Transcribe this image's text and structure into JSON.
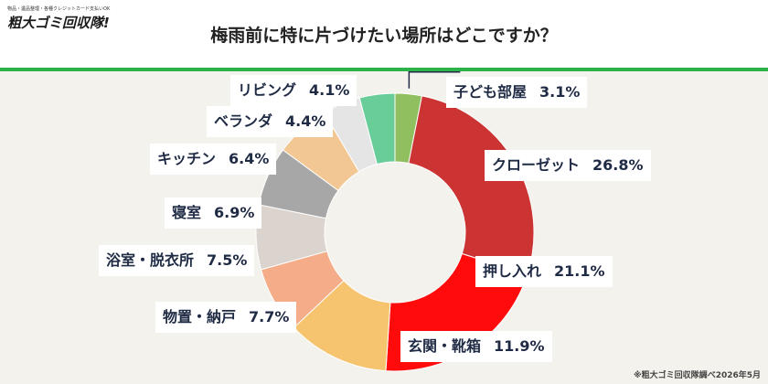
{
  "logo": {
    "tagline": "物品・遺品整理・各種クレジットカード支払いOK",
    "name": "粗大ゴミ回収隊!"
  },
  "source_note": "※粗大ゴミ回収隊調べ2026年5月",
  "colors": {
    "accent_rule": "#2bb34a",
    "background": "#f4f2ec"
  },
  "chart_data": {
    "type": "pie",
    "donut": true,
    "title": "梅雨前に特に片づけたい場所はどこですか？",
    "unit": "%",
    "slices": [
      {
        "label": "子ども部屋",
        "value": 3.1,
        "value_text": "3.1%",
        "color": "#8fbf5e"
      },
      {
        "label": "クローゼット",
        "value": 26.8,
        "value_text": "26.8%",
        "color": "#cc3434"
      },
      {
        "label": "押し入れ",
        "value": 21.1,
        "value_text": "21.1%",
        "color": "#ff0b0b"
      },
      {
        "label": "玄関・靴箱",
        "value": 11.9,
        "value_text": "11.9%",
        "color": "#f6c46e"
      },
      {
        "label": "物置・納戸",
        "value": 7.7,
        "value_text": "7.7%",
        "color": "#f4ad88"
      },
      {
        "label": "浴室・脱衣所",
        "value": 7.5,
        "value_text": "7.5%",
        "color": "#dbd3cd"
      },
      {
        "label": "寝室",
        "value": 6.9,
        "value_text": "6.9%",
        "color": "#a7a7a7"
      },
      {
        "label": "キッチン",
        "value": 6.4,
        "value_text": "6.4%",
        "color": "#f2c793"
      },
      {
        "label": "ベランダ",
        "value": 4.4,
        "value_text": "4.4%",
        "color": "#e5e5e5"
      },
      {
        "label": "リビング",
        "value": 4.1,
        "value_text": "4.1%",
        "color": "#69cd99"
      }
    ]
  }
}
